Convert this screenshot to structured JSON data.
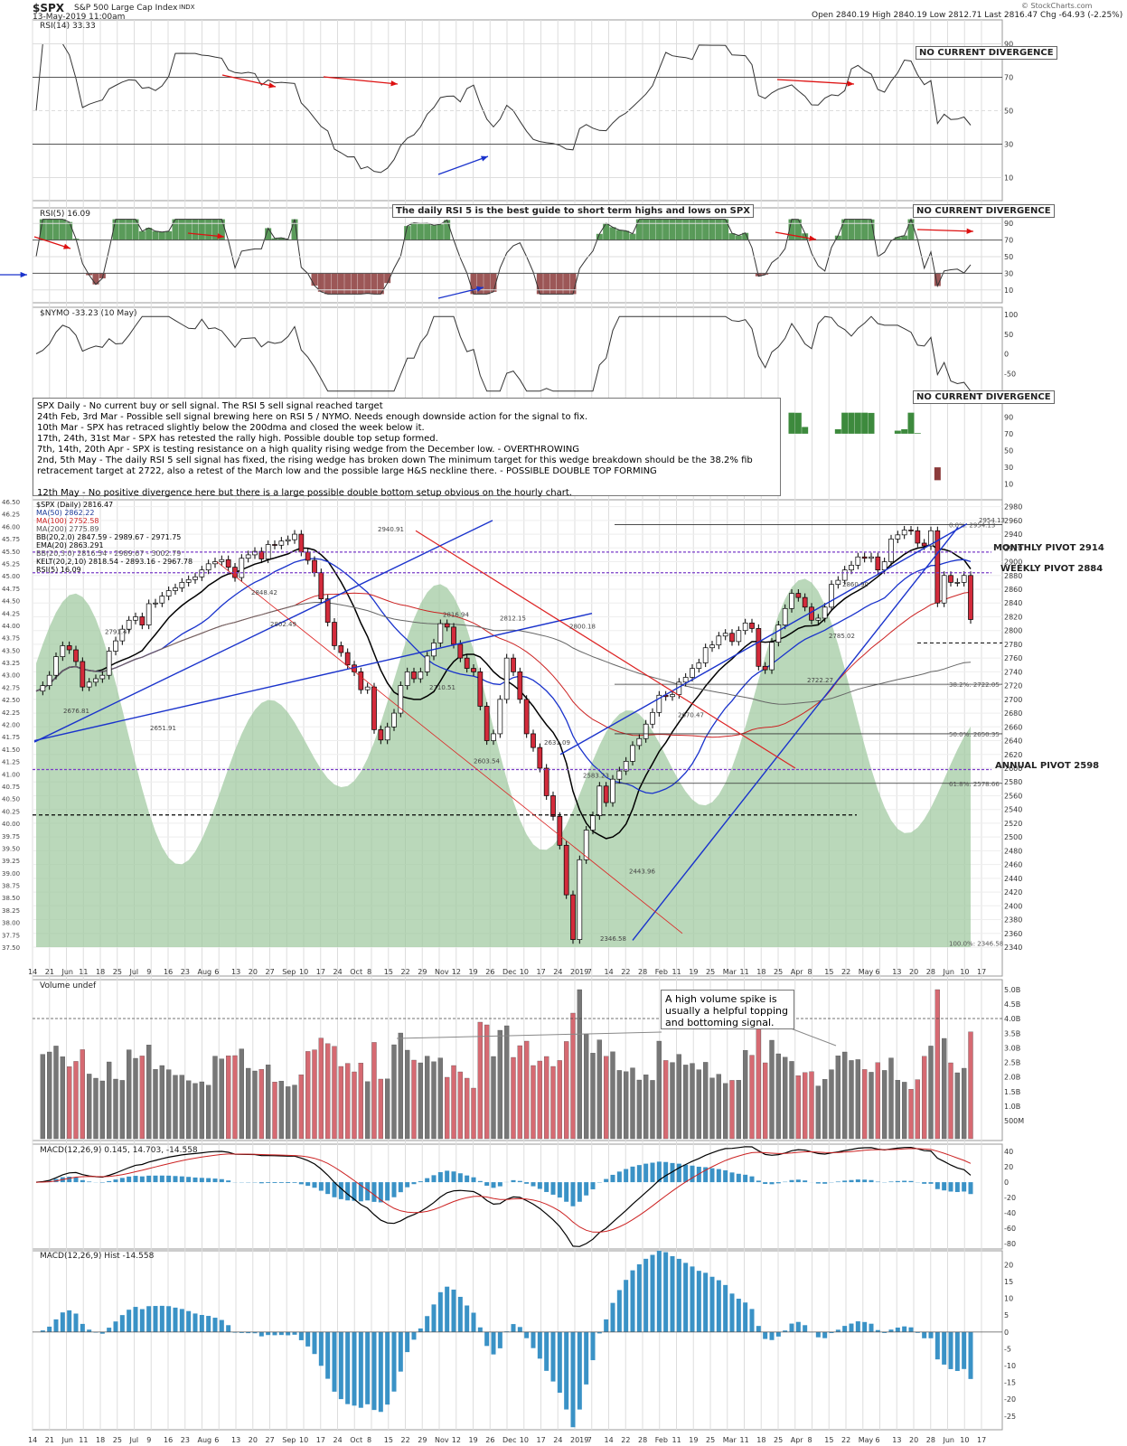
{
  "header": {
    "symbol": "$SPX",
    "name": "S&P 500 Large Cap Index",
    "exchange": "INDX",
    "date": "13-May-2019 11:00am",
    "ohlc": "Open 2840.19  High 2840.19  Low 2812.71  Last 2816.47  Chg -64.93 (-2.25%)",
    "brand": "© StockCharts.com"
  },
  "labels": {
    "rsi14": "RSI(14) 33.33",
    "rsi5": "RSI(5) 16.09",
    "nymo": "$NYMO -33.23 (10 May)",
    "volume": "Volume undef",
    "macd": "MACD(12,26,9) 0.145, 14.703, -14.558",
    "macd_hist": "MACD(12,26,9) Hist -14.558"
  },
  "legend": [
    {
      "text": "$SPX (Daily) 2816.47",
      "color": "#000000"
    },
    {
      "text": "MA(50) 2862.22",
      "color": "#1c3a99"
    },
    {
      "text": "MA(100) 2752.58",
      "color": "#cc2222"
    },
    {
      "text": "MA(200) 2775.89",
      "color": "#555555"
    },
    {
      "text": "BB(20,2.0) 2847.59 - 2989.67 - 2971.75",
      "color": "#000000"
    },
    {
      "text": "EMA(20) 2863.291",
      "color": "#000000"
    },
    {
      "text": "BB(20,3.0) 2816.54 - 2989.67 - 3002.79",
      "color": "#555555"
    },
    {
      "text": "KELT(20,2,10) 2818.54 - 2893.16 - 2967.78",
      "color": "#000000"
    },
    {
      "text": "RSI(5) 16.09",
      "color": "#000000"
    }
  ],
  "notes": {
    "rsi5_guide": "The daily RSI 5 is the best guide to short term highs and lows on SPX",
    "no_div_1": "NO CURRENT DIVERGENCE",
    "no_div_2": "NO CURRENT DIVERGENCE",
    "no_div_3": "NO CURRENT DIVERGENCE",
    "volume_note": "A high volume spike is usually a helpful topping and bottoming signal.",
    "main_box": [
      "SPX Daily - No current buy or sell signal. The RSI 5 sell signal reached target",
      "24th Feb, 3rd Mar - Possible sell signal brewing here on RSI 5 / NYMO. Needs enough downside action for the signal to fix.",
      "10th Mar - SPX has retraced slightly below the 200dma and closed the week below it.",
      "17th, 24th, 31st Mar - SPX has retested the rally high. Possible double top setup formed.",
      "7th, 14th, 20th Apr - SPX is testing resistance on a high quality rising wedge from the December low. - OVERTHROWING",
      "2nd, 5th May - The daily RSI 5 sell signal has fixed, the rising wedge has broken down The minimum target for this wedge breakdown should be the 38.2% fib",
      "retracement target at 2722, also a retest of the March low and the possible large H&S neckline there. - POSSIBLE DOUBLE TOP FORMING",
      "",
      "12th May - No positive divergence here but there is a large possible double bottom setup obvious on the hourly chart."
    ]
  },
  "pivots": {
    "monthly": "MONTHLY PIVOT 2914",
    "weekly": "WEEKLY PIVOT 2884",
    "annual": "ANNUAL PIVOT 2598"
  },
  "colors": {
    "up_candle": "#ffffff",
    "down_candle": "#d32b3b",
    "rsi_fill_high": "#3d8a3d",
    "rsi_fill_low": "#8b3a3a",
    "nymo_area": "#9cc79c",
    "macd_hist": "#3a92c6",
    "trendline": "#1a33cc",
    "red_line": "#dd2222",
    "pivot_line": "#7a3cc8"
  },
  "chart_data": {
    "type": "line",
    "x_axis_ticks": [
      "14",
      "21",
      "Jun",
      "11",
      "18",
      "25",
      "Jul",
      "9",
      "16",
      "23",
      "Aug",
      "6",
      "13",
      "20",
      "27",
      "Sep",
      "10",
      "17",
      "24",
      "Oct",
      "8",
      "15",
      "22",
      "29",
      "Nov",
      "12",
      "19",
      "26",
      "Dec",
      "10",
      "17",
      "24",
      "2019",
      "7",
      "14",
      "22",
      "28",
      "Feb",
      "11",
      "19",
      "25",
      "Mar",
      "11",
      "18",
      "25",
      "Apr",
      "8",
      "15",
      "22",
      "May",
      "6",
      "13",
      "20",
      "28",
      "Jun",
      "10",
      "17"
    ],
    "price_axis": [
      "2980",
      "2960",
      "2940",
      "2920",
      "2900",
      "2880",
      "2860",
      "2840",
      "2820",
      "2800",
      "2780",
      "2760",
      "2740",
      "2720",
      "2700",
      "2680",
      "2660",
      "2640",
      "2620",
      "2600",
      "2580",
      "2560",
      "2540",
      "2520",
      "2500",
      "2480",
      "2460",
      "2440",
      "2420",
      "2400",
      "2380",
      "2360",
      "2340"
    ],
    "nymo_axis_left": [
      "46.50",
      "46.25",
      "46.00",
      "45.75",
      "45.50",
      "45.25",
      "45.00",
      "44.75",
      "44.50",
      "44.25",
      "44.00",
      "43.75",
      "43.50",
      "43.25",
      "43.00",
      "42.75",
      "42.50",
      "42.25",
      "42.00",
      "41.75",
      "41.50",
      "41.25",
      "41.00",
      "40.75",
      "40.50",
      "40.25",
      "40.00",
      "39.75",
      "39.50",
      "39.25",
      "39.00",
      "38.75",
      "38.50",
      "38.25",
      "38.00",
      "37.75",
      "37.50"
    ],
    "rsi14_axis": [
      "90",
      "70",
      "50",
      "30",
      "10"
    ],
    "rsi5_axis": [
      "90",
      "70",
      "50",
      "30",
      "10"
    ],
    "nymo_axis": [
      "100",
      "50",
      "0",
      "-50",
      "-100"
    ],
    "volume_axis": [
      "5.0B",
      "4.5B",
      "4.0B",
      "3.5B",
      "3.0B",
      "2.5B",
      "2.0B",
      "1.5B",
      "1.0B",
      "500M"
    ],
    "macd_axis": [
      "40",
      "20",
      "0",
      "-20",
      "-40",
      "-60",
      "-80"
    ],
    "hist_axis": [
      "20",
      "15",
      "10",
      "5",
      "0",
      "-5",
      "-10",
      "-15",
      "-20",
      "-25"
    ],
    "price_annotations": [
      "2940.91",
      "2954.13",
      "2791.47",
      "2802.49",
      "2848.42",
      "2651.91",
      "2676.81",
      "2816.94",
      "2812.15",
      "2800.18",
      "2710.51",
      "2603.54",
      "2631.09",
      "2583.23",
      "2443.96",
      "2346.58",
      "2722.27",
      "2785.02",
      "2860.90",
      "2670.47"
    ],
    "fib_labels": [
      "0.0%: 2954.13",
      "38.2%: 2722.05",
      "50.0%: 2650.35",
      "61.8%: 2578.66",
      "100.0%: 2346.58"
    ],
    "series": [
      {
        "name": "$SPX (Daily)",
        "values": [
          2712,
          2720,
          2735,
          2762,
          2778,
          2772,
          2755,
          2718,
          2725,
          2730,
          2735,
          2770,
          2785,
          2802,
          2815,
          2820,
          2808,
          2839,
          2840,
          2850,
          2858,
          2862,
          2870,
          2874,
          2878,
          2888,
          2897,
          2900,
          2903,
          2892,
          2877,
          2905,
          2910,
          2915,
          2904,
          2925,
          2924,
          2930,
          2932,
          2940,
          2914,
          2902,
          2884,
          2846,
          2812,
          2778,
          2768,
          2750,
          2740,
          2714,
          2718,
          2656,
          2641,
          2660,
          2680,
          2720,
          2740,
          2730,
          2740,
          2763,
          2782,
          2810,
          2805,
          2780,
          2760,
          2745,
          2740,
          2690,
          2640,
          2650,
          2700,
          2760,
          2740,
          2700,
          2650,
          2630,
          2600,
          2560,
          2530,
          2488,
          2416,
          2351,
          2467,
          2510,
          2531,
          2574,
          2550,
          2584,
          2596,
          2610,
          2633,
          2643,
          2664,
          2681,
          2706,
          2704,
          2707,
          2725,
          2732,
          2745,
          2753,
          2775,
          2779,
          2792,
          2796,
          2784,
          2800,
          2811,
          2803,
          2748,
          2743,
          2783,
          2808,
          2832,
          2854,
          2848,
          2834,
          2815,
          2818,
          2834,
          2867,
          2873,
          2888,
          2895,
          2907,
          2905,
          2907,
          2888,
          2900,
          2933,
          2939,
          2946,
          2945,
          2927,
          2923,
          2945,
          2840,
          2880,
          2870,
          2870,
          2880,
          2816
        ]
      }
    ]
  }
}
